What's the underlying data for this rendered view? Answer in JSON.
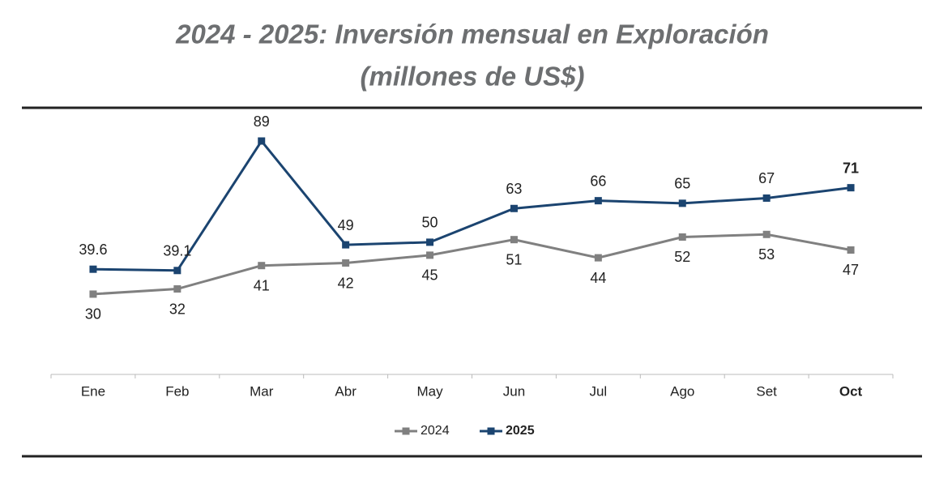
{
  "chart_data": {
    "type": "line",
    "title": [
      "2024 - 2025: Inversión mensual en Exploración",
      "(millones de US$)"
    ],
    "categories": [
      "Ene",
      "Feb",
      "Mar",
      "Abr",
      "May",
      "Jun",
      "Jul",
      "Ago",
      "Set",
      "Oct"
    ],
    "series": [
      {
        "name": "2024",
        "color": "#808080",
        "values": [
          30,
          32,
          41,
          42,
          45,
          51,
          44,
          52,
          53,
          47
        ]
      },
      {
        "name": "2025",
        "color": "#1b4470",
        "values": [
          39.6,
          39.1,
          89,
          49,
          50,
          63,
          66,
          65,
          67,
          71
        ]
      }
    ]
  }
}
